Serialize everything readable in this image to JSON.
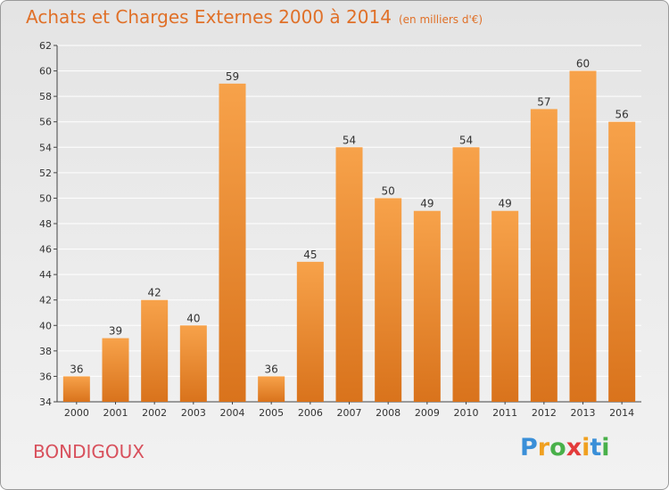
{
  "title": "Achats et Charges Externes 2000 à 2014",
  "unit": "(en milliers d'€)",
  "commune": "BONDIGOUX",
  "logo": {
    "letters": [
      "P",
      "r",
      "o",
      "x",
      "i",
      "t",
      "i"
    ],
    "colors": [
      "#3a8fd8",
      "#f0a020",
      "#49b04a",
      "#e33b3b",
      "#f0a020",
      "#3a8fd8",
      "#49b04a"
    ]
  },
  "colors": {
    "bar_light": "#f7a24a",
    "bar_dark": "#d9731c",
    "axis": "#444444",
    "grid": "#ffffff"
  },
  "chart_data": {
    "type": "bar",
    "title": "Achats et Charges Externes 2000 à 2014",
    "categories": [
      "2000",
      "2001",
      "2002",
      "2003",
      "2004",
      "2005",
      "2006",
      "2007",
      "2008",
      "2009",
      "2010",
      "2011",
      "2012",
      "2013",
      "2014"
    ],
    "values": [
      36,
      39,
      42,
      40,
      59,
      36,
      45,
      54,
      50,
      49,
      54,
      49,
      57,
      60,
      56
    ],
    "ylim": [
      34,
      62
    ],
    "yticks": [
      34,
      36,
      38,
      40,
      42,
      44,
      46,
      48,
      50,
      52,
      54,
      56,
      58,
      60,
      62
    ],
    "grid": true,
    "data_labels": true
  }
}
